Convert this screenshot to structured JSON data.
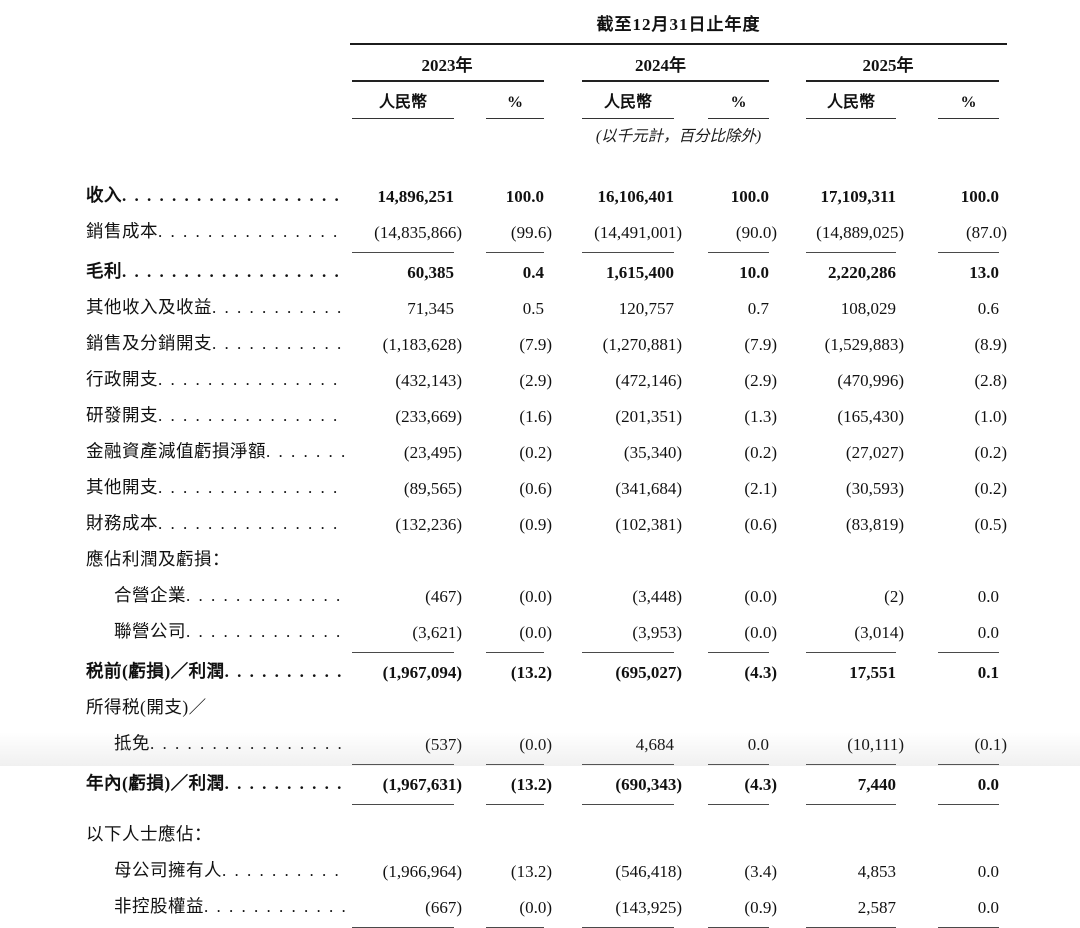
{
  "table": {
    "title": "截至12月31日止年度",
    "units_note": "(以千元計，百分比除外)",
    "year_groups": [
      {
        "year": "2023年",
        "currency_header": "人民幣",
        "percent_header": "%"
      },
      {
        "year": "2024年",
        "currency_header": "人民幣",
        "percent_header": "%"
      },
      {
        "year": "2025年",
        "currency_header": "人民幣",
        "percent_header": "%"
      }
    ],
    "rows": [
      {
        "label": "收入",
        "bold": true,
        "indent": false,
        "dots": true,
        "rule_below": false,
        "gap_top": false,
        "values": [
          "14,896,251",
          "100.0",
          "16,106,401",
          "100.0",
          "17,109,311",
          "100.0"
        ]
      },
      {
        "label": "銷售成本",
        "bold": false,
        "indent": false,
        "dots": true,
        "rule_below": true,
        "gap_top": false,
        "values": [
          "(14,835,866)",
          "(99.6)",
          "(14,491,001)",
          "(90.0)",
          "(14,889,025)",
          "(87.0)"
        ]
      },
      {
        "label": "毛利",
        "bold": true,
        "indent": false,
        "dots": true,
        "rule_below": false,
        "gap_top": false,
        "values": [
          "60,385",
          "0.4",
          "1,615,400",
          "10.0",
          "2,220,286",
          "13.0"
        ]
      },
      {
        "label": "其他收入及收益",
        "bold": false,
        "indent": false,
        "dots": true,
        "rule_below": false,
        "gap_top": false,
        "values": [
          "71,345",
          "0.5",
          "120,757",
          "0.7",
          "108,029",
          "0.6"
        ]
      },
      {
        "label": "銷售及分銷開支",
        "bold": false,
        "indent": false,
        "dots": true,
        "rule_below": false,
        "gap_top": false,
        "values": [
          "(1,183,628)",
          "(7.9)",
          "(1,270,881)",
          "(7.9)",
          "(1,529,883)",
          "(8.9)"
        ]
      },
      {
        "label": "行政開支",
        "bold": false,
        "indent": false,
        "dots": true,
        "rule_below": false,
        "gap_top": false,
        "values": [
          "(432,143)",
          "(2.9)",
          "(472,146)",
          "(2.9)",
          "(470,996)",
          "(2.8)"
        ]
      },
      {
        "label": "研發開支",
        "bold": false,
        "indent": false,
        "dots": true,
        "rule_below": false,
        "gap_top": false,
        "values": [
          "(233,669)",
          "(1.6)",
          "(201,351)",
          "(1.3)",
          "(165,430)",
          "(1.0)"
        ]
      },
      {
        "label": "金融資產減值虧損淨額",
        "bold": false,
        "indent": false,
        "dots": true,
        "rule_below": false,
        "gap_top": false,
        "values": [
          "(23,495)",
          "(0.2)",
          "(35,340)",
          "(0.2)",
          "(27,027)",
          "(0.2)"
        ]
      },
      {
        "label": "其他開支",
        "bold": false,
        "indent": false,
        "dots": true,
        "rule_below": false,
        "gap_top": false,
        "values": [
          "(89,565)",
          "(0.6)",
          "(341,684)",
          "(2.1)",
          "(30,593)",
          "(0.2)"
        ]
      },
      {
        "label": "財務成本",
        "bold": false,
        "indent": false,
        "dots": true,
        "rule_below": false,
        "gap_top": false,
        "values": [
          "(132,236)",
          "(0.9)",
          "(102,381)",
          "(0.6)",
          "(83,819)",
          "(0.5)"
        ]
      },
      {
        "label": "應佔利潤及虧損：",
        "bold": false,
        "indent": false,
        "dots": false,
        "rule_below": false,
        "gap_top": false,
        "values": [
          "",
          "",
          "",
          "",
          "",
          ""
        ]
      },
      {
        "label": "合營企業",
        "bold": false,
        "indent": true,
        "dots": true,
        "rule_below": false,
        "gap_top": false,
        "values": [
          "(467)",
          "(0.0)",
          "(3,448)",
          "(0.0)",
          "(2)",
          "0.0"
        ]
      },
      {
        "label": "聯營公司",
        "bold": false,
        "indent": true,
        "dots": true,
        "rule_below": true,
        "gap_top": false,
        "values": [
          "(3,621)",
          "(0.0)",
          "(3,953)",
          "(0.0)",
          "(3,014)",
          "0.0"
        ]
      },
      {
        "label": "税前(虧損)／利潤",
        "bold": true,
        "indent": false,
        "dots": true,
        "rule_below": false,
        "gap_top": false,
        "values": [
          "(1,967,094)",
          "(13.2)",
          "(695,027)",
          "(4.3)",
          "17,551",
          "0.1"
        ]
      },
      {
        "label": "所得税(開支)／",
        "bold": false,
        "indent": false,
        "dots": false,
        "rule_below": false,
        "gap_top": false,
        "values": [
          "",
          "",
          "",
          "",
          "",
          ""
        ]
      },
      {
        "label": "抵免",
        "bold": false,
        "indent": true,
        "dots": true,
        "rule_below": true,
        "gap_top": false,
        "values": [
          "(537)",
          "(0.0)",
          "4,684",
          "0.0",
          "(10,111)",
          "(0.1)"
        ]
      },
      {
        "label": "年內(虧損)／利潤",
        "bold": true,
        "indent": false,
        "dots": true,
        "rule_below": true,
        "gap_top": false,
        "values": [
          "(1,967,631)",
          "(13.2)",
          "(690,343)",
          "(4.3)",
          "7,440",
          "0.0"
        ]
      },
      {
        "label": "以下人士應佔：",
        "bold": false,
        "indent": false,
        "dots": false,
        "rule_below": false,
        "gap_top": true,
        "values": [
          "",
          "",
          "",
          "",
          "",
          ""
        ]
      },
      {
        "label": "母公司擁有人",
        "bold": false,
        "indent": true,
        "dots": true,
        "rule_below": false,
        "gap_top": false,
        "values": [
          "(1,966,964)",
          "(13.2)",
          "(546,418)",
          "(3.4)",
          "4,853",
          "0.0"
        ]
      },
      {
        "label": "非控股權益",
        "bold": false,
        "indent": true,
        "dots": true,
        "rule_below": true,
        "gap_top": false,
        "values": [
          "(667)",
          "(0.0)",
          "(143,925)",
          "(0.9)",
          "2,587",
          "0.0"
        ]
      }
    ]
  }
}
